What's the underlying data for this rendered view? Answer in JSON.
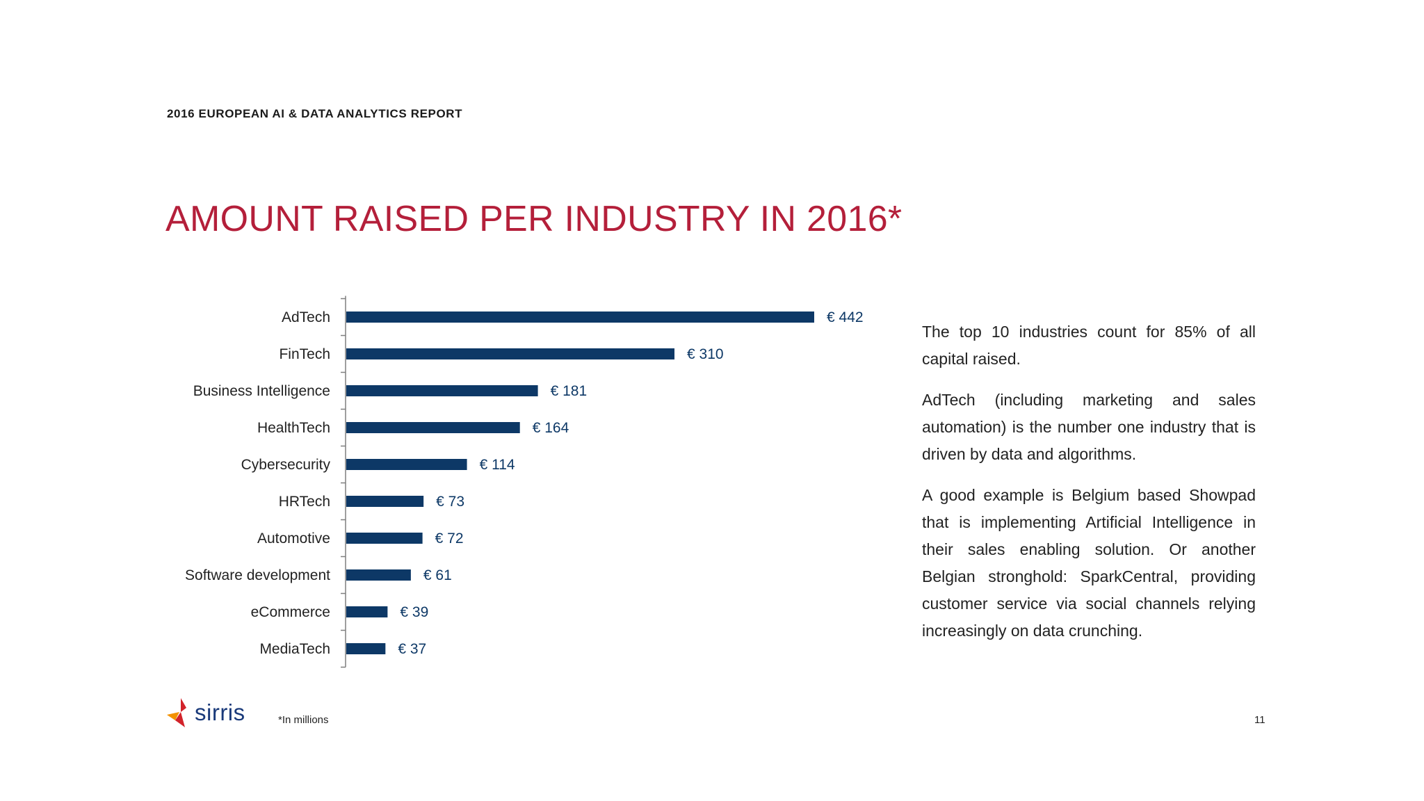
{
  "header": {
    "report_title": "2016 EUROPEAN AI & DATA ANALYTICS REPORT",
    "heading": "AMOUNT RAISED PER INDUSTRY IN 2016*"
  },
  "chart_data": {
    "type": "bar",
    "orientation": "horizontal",
    "categories": [
      "AdTech",
      "FinTech",
      "Business Intelligence",
      "HealthTech",
      "Cybersecurity",
      "HRTech",
      "Automotive",
      "Software development",
      "eCommerce",
      "MediaTech"
    ],
    "values": [
      442,
      310,
      181,
      164,
      114,
      73,
      72,
      61,
      39,
      37
    ],
    "data_labels": [
      "€ 442",
      "€ 310",
      "€ 181",
      "€ 164",
      "€ 114",
      "€ 73",
      "€ 72",
      "€ 61",
      "€ 39",
      "€ 37"
    ],
    "xlim": [
      0,
      442
    ],
    "grid": false,
    "bar_color": "#0d3866",
    "label_color": "#0d3866"
  },
  "side_text": {
    "paragraphs": [
      "The top 10 industries count for 85% of all capital raised.",
      "AdTech (including marketing and sales automation) is the number one industry that is driven by data and algorithms.",
      "A good example is Belgium based Showpad that is implementing Artificial Intelligence in their sales enabling solution. Or another Belgian stronghold: SparkCentral, providing customer service via social channels relying increasingly on data crunching."
    ]
  },
  "footer": {
    "logo_text": "sirris",
    "footnote": "*In millions",
    "page_number": "11"
  },
  "colors": {
    "heading": "#b41f3a",
    "logo_text": "#1a3a7a",
    "logo_mark_red": "#d2232a",
    "logo_mark_orange": "#f39200"
  }
}
